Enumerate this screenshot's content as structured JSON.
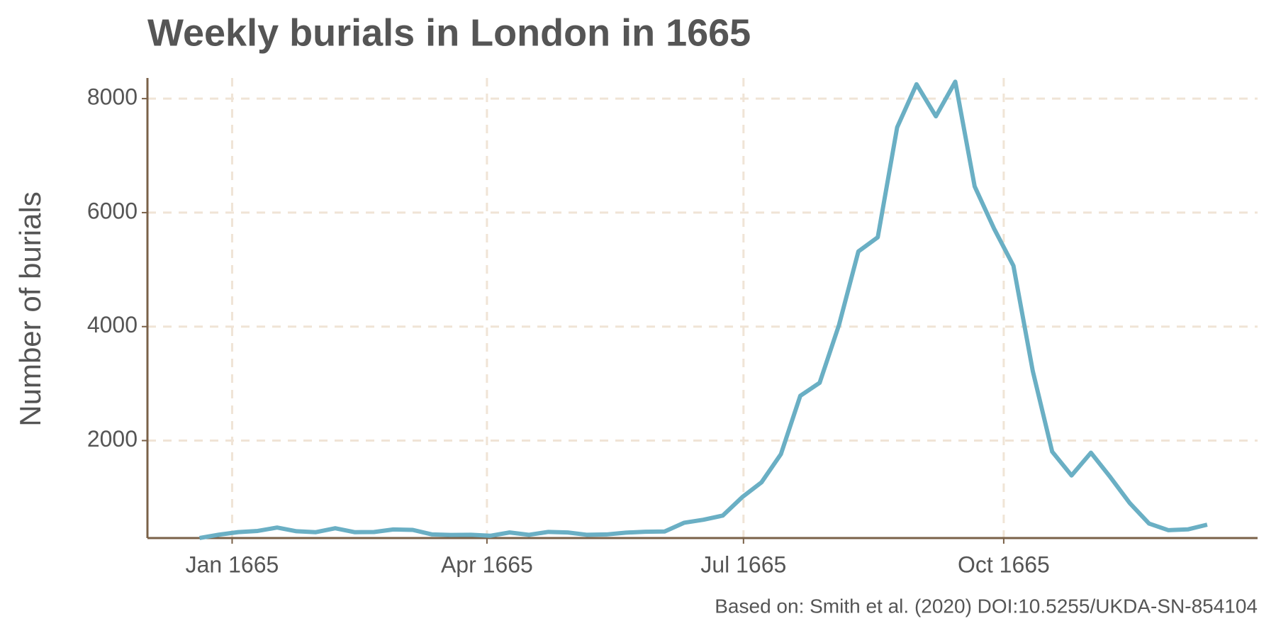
{
  "chart_data": {
    "type": "line",
    "title": "Weekly burials in London in 1665",
    "y_label": "Number of burials",
    "caption": "Based on: Smith et al. (2020) DOI:10.5255/UKDA-SN-854104",
    "x": [
      1,
      2,
      3,
      4,
      5,
      6,
      7,
      8,
      9,
      10,
      11,
      12,
      13,
      14,
      15,
      16,
      17,
      18,
      19,
      20,
      21,
      22,
      23,
      24,
      25,
      26,
      27,
      28,
      29,
      30,
      31,
      32,
      33,
      34,
      35,
      36,
      37,
      38,
      39,
      40,
      41,
      42,
      43,
      44,
      45,
      46,
      47,
      48,
      49,
      50,
      51,
      52,
      53
    ],
    "series": [
      {
        "name": "Burials",
        "color": "#6aafc4",
        "values": [
          291,
          349,
          394,
          415,
          474,
          409,
          393,
          462,
          393,
          396,
          441,
          433,
          353,
          344,
          348,
          330,
          388,
          347,
          398,
          388,
          347,
          353,
          385,
          400,
          405,
          558,
          611,
          684,
          1006,
          1268,
          1761,
          2785,
          3014,
          4030,
          5319,
          5568,
          7496,
          8252,
          7690,
          8297,
          6460,
          5720,
          5068,
          3219,
          1806,
          1388,
          1787,
          1359,
          905,
          544,
          428,
          442,
          525
        ]
      }
    ],
    "xlim": [
      -1.69,
      55.6
    ],
    "xticks": [
      {
        "value": 2.68,
        "label": "Jan 1665"
      },
      {
        "value": 15.83,
        "label": "Apr 1665"
      },
      {
        "value": 29.07,
        "label": "Jul 1665"
      },
      {
        "value": 42.5,
        "label": "Oct 1665"
      }
    ],
    "ylim": [
      290,
      8300
    ],
    "yticks": [
      2000,
      4000,
      6000,
      8000
    ],
    "grid": true
  }
}
